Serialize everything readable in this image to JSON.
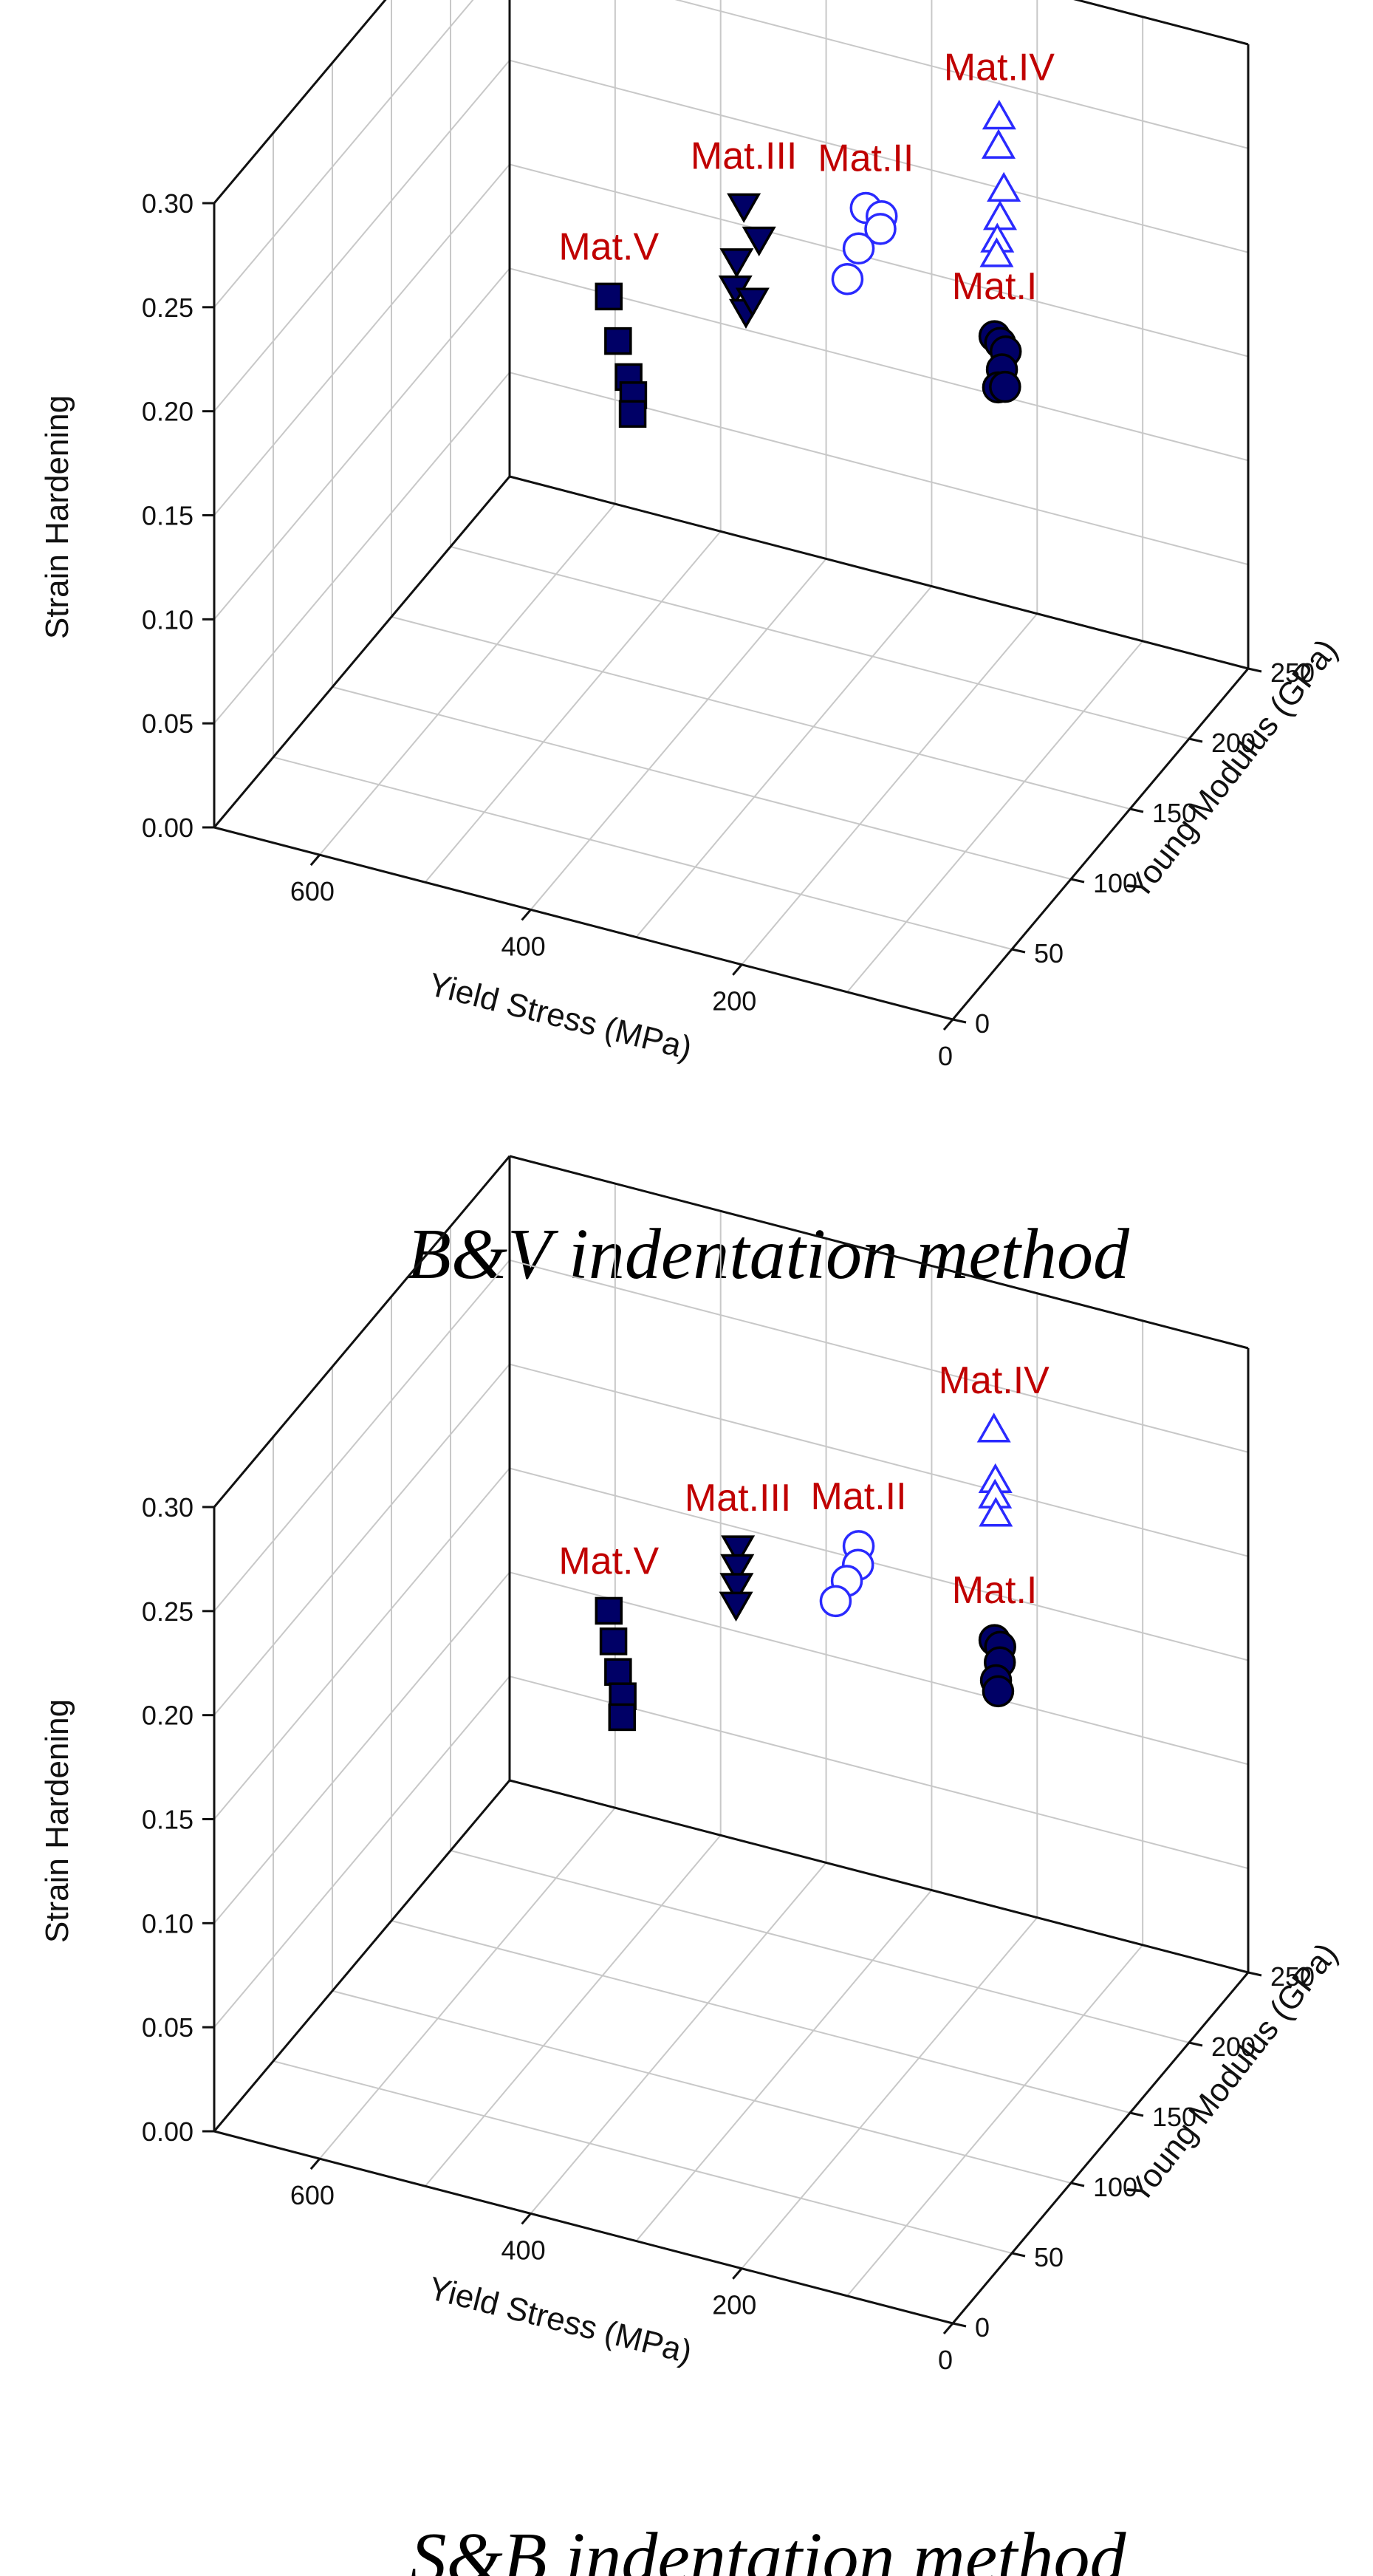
{
  "chart_data": [
    {
      "type": "scatter3d",
      "caption": "B&V indentation method",
      "xlabel": "Yield Stress (MPa)",
      "ylabel": "Young Modulus (GPa)",
      "zlabel": "Strain Hardening",
      "xlim": [
        0,
        700
      ],
      "ylim": [
        0,
        250
      ],
      "zlim": [
        0,
        0.3
      ],
      "xticks": [
        "0",
        "200",
        "400",
        "600"
      ],
      "yticks": [
        "0",
        "50",
        "100",
        "150",
        "200",
        "250"
      ],
      "zticks": [
        "0.00",
        "0.05",
        "0.10",
        "0.15",
        "0.20",
        "0.25",
        "0.30"
      ],
      "series": [
        {
          "name": "Mat.I",
          "marker": "circle",
          "filled": true,
          "color": "#000066",
          "label_color": "#c00000",
          "points": [
            [
              190,
              205,
              0.165
            ],
            [
              188,
              208,
              0.16
            ],
            [
              185,
              210,
              0.155
            ],
            [
              183,
              205,
              0.15
            ],
            [
              181,
              200,
              0.145
            ],
            [
              180,
              205,
              0.142
            ]
          ]
        },
        {
          "name": "Mat.II",
          "marker": "circle",
          "filled": false,
          "color": "#2a2aff",
          "label_color": "#c00000",
          "points": [
            [
              340,
              230,
              0.19
            ],
            [
              325,
              230,
              0.188
            ],
            [
              315,
              220,
              0.19
            ],
            [
              330,
              215,
              0.182
            ],
            [
              335,
              210,
              0.17
            ]
          ]
        },
        {
          "name": "Mat.III",
          "marker": "triangle-down",
          "filled": true,
          "color": "#000066",
          "label_color": "#c00000",
          "points": [
            [
              450,
              225,
              0.18
            ],
            [
              430,
              220,
              0.17
            ],
            [
              440,
              210,
              0.165
            ],
            [
              430,
              200,
              0.16
            ],
            [
              420,
              200,
              0.15
            ],
            [
              425,
              210,
              0.148
            ]
          ]
        },
        {
          "name": "Mat.IV",
          "marker": "triangle-up",
          "filled": false,
          "color": "#2a2aff",
          "label_color": "#c00000",
          "points": [
            [
              180,
              200,
              0.275
            ],
            [
              175,
              195,
              0.265
            ],
            [
              170,
              195,
              0.245
            ],
            [
              168,
              190,
              0.235
            ],
            [
              165,
              185,
              0.228
            ],
            [
              160,
              180,
              0.225
            ]
          ]
        },
        {
          "name": "Mat.V",
          "marker": "square",
          "filled": true,
          "color": "#000066",
          "label_color": "#c00000",
          "points": [
            [
              550,
              200,
              0.14
            ],
            [
              530,
              190,
              0.128
            ],
            [
              520,
              190,
              0.112
            ],
            [
              510,
              185,
              0.108
            ],
            [
              505,
              180,
              0.103
            ]
          ]
        }
      ]
    },
    {
      "type": "scatter3d",
      "caption": "S&B indentation method",
      "xlabel": "Yield Stress (MPa)",
      "ylabel": "Young Modulus (GPa)",
      "zlabel": "Strain Hardening",
      "xlim": [
        0,
        700
      ],
      "ylim": [
        0,
        250
      ],
      "zlim": [
        0,
        0.3
      ],
      "xticks": [
        "0",
        "200",
        "400",
        "600"
      ],
      "yticks": [
        "0",
        "50",
        "100",
        "150",
        "200",
        "250"
      ],
      "zticks": [
        "0.00",
        "0.05",
        "0.10",
        "0.15",
        "0.20",
        "0.25",
        "0.30"
      ],
      "series": [
        {
          "name": "Mat.I",
          "marker": "circle",
          "filled": true,
          "color": "#000066",
          "label_color": "#c00000",
          "points": [
            [
              190,
              205,
              0.165
            ],
            [
              188,
              208,
              0.16
            ],
            [
              185,
              205,
              0.155
            ],
            [
              183,
              200,
              0.15
            ],
            [
              181,
              200,
              0.145
            ]
          ]
        },
        {
          "name": "Mat.II",
          "marker": "circle",
          "filled": false,
          "color": "#2a2aff",
          "label_color": "#c00000",
          "points": [
            [
              330,
              215,
              0.185
            ],
            [
              325,
              210,
              0.18
            ],
            [
              330,
              205,
              0.175
            ],
            [
              335,
              200,
              0.168
            ]
          ]
        },
        {
          "name": "Mat.III",
          "marker": "triangle-down",
          "filled": true,
          "color": "#000066",
          "label_color": "#c00000",
          "points": [
            [
              450,
              220,
              0.165
            ],
            [
              445,
              215,
              0.16
            ],
            [
              440,
              210,
              0.155
            ],
            [
              435,
              205,
              0.15
            ]
          ]
        },
        {
          "name": "Mat.IV",
          "marker": "triangle-up",
          "filled": false,
          "color": "#2a2aff",
          "label_color": "#c00000",
          "points": [
            [
              185,
              200,
              0.27
            ],
            [
              178,
              195,
              0.25
            ],
            [
              175,
              192,
              0.245
            ],
            [
              172,
              190,
              0.238
            ]
          ]
        },
        {
          "name": "Mat.V",
          "marker": "square",
          "filled": true,
          "color": "#000066",
          "label_color": "#c00000",
          "points": [
            [
              550,
              200,
              0.135
            ],
            [
              540,
              195,
              0.125
            ],
            [
              530,
              190,
              0.115
            ],
            [
              520,
              185,
              0.108
            ],
            [
              515,
              180,
              0.102
            ]
          ]
        }
      ]
    }
  ]
}
